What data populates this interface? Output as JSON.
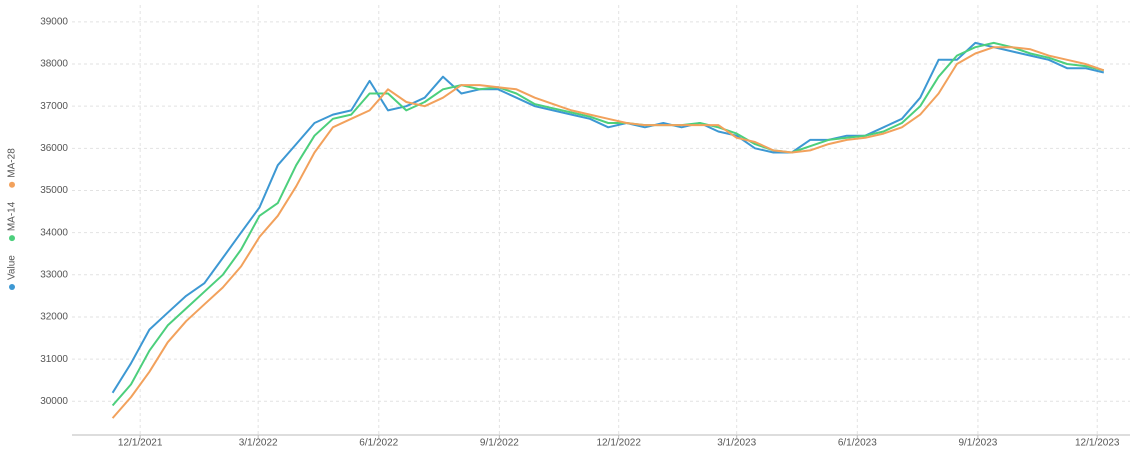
{
  "chart_data": {
    "type": "line",
    "x": [
      "2021-11-10",
      "2021-11-24",
      "2021-12-08",
      "2021-12-22",
      "2022-01-05",
      "2022-01-19",
      "2022-02-02",
      "2022-02-16",
      "2022-03-02",
      "2022-03-16",
      "2022-03-30",
      "2022-04-13",
      "2022-04-27",
      "2022-05-11",
      "2022-05-25",
      "2022-06-08",
      "2022-06-22",
      "2022-07-06",
      "2022-07-20",
      "2022-08-03",
      "2022-08-17",
      "2022-08-31",
      "2022-09-14",
      "2022-09-28",
      "2022-10-12",
      "2022-10-26",
      "2022-11-09",
      "2022-11-23",
      "2022-12-07",
      "2022-12-21",
      "2023-01-04",
      "2023-01-18",
      "2023-02-01",
      "2023-02-15",
      "2023-03-01",
      "2023-03-15",
      "2023-03-29",
      "2023-04-12",
      "2023-04-26",
      "2023-05-10",
      "2023-05-24",
      "2023-06-07",
      "2023-06-21",
      "2023-07-05",
      "2023-07-19",
      "2023-08-02",
      "2023-08-16",
      "2023-08-30",
      "2023-09-13",
      "2023-09-27",
      "2023-10-11",
      "2023-10-25",
      "2023-11-08",
      "2023-11-22",
      "2023-12-06"
    ],
    "series": [
      {
        "name": "Value",
        "color": "#3d98d3",
        "values": [
          30200,
          30900,
          31700,
          32100,
          32500,
          32800,
          33400,
          34000,
          34600,
          35600,
          36100,
          36600,
          36800,
          36900,
          37600,
          36900,
          37000,
          37200,
          37700,
          37300,
          37400,
          37400,
          37200,
          37000,
          36900,
          36800,
          36700,
          36500,
          36600,
          36500,
          36600,
          36500,
          36600,
          36400,
          36300,
          36000,
          35900,
          35900,
          36200,
          36200,
          36300,
          36300,
          36500,
          36700,
          37200,
          38100,
          38100,
          38500,
          38400,
          38300,
          38200,
          38100,
          37900,
          37900,
          37800
        ]
      },
      {
        "name": "MA-14",
        "color": "#4ccf7c",
        "values": [
          29900,
          30400,
          31200,
          31800,
          32200,
          32600,
          33000,
          33600,
          34400,
          34700,
          35600,
          36300,
          36700,
          36800,
          37300,
          37300,
          36900,
          37100,
          37400,
          37500,
          37400,
          37450,
          37300,
          37050,
          36950,
          36850,
          36750,
          36600,
          36600,
          36550,
          36550,
          36550,
          36600,
          36500,
          36350,
          36100,
          35950,
          35900,
          36050,
          36200,
          36250,
          36300,
          36400,
          36600,
          37000,
          37700,
          38200,
          38400,
          38500,
          38400,
          38250,
          38150,
          38000,
          37950,
          37850
        ]
      },
      {
        "name": "MA-28",
        "color": "#f2a15c",
        "values": [
          29600,
          30100,
          30700,
          31400,
          31900,
          32300,
          32700,
          33200,
          33900,
          34400,
          35100,
          35900,
          36500,
          36700,
          36900,
          37400,
          37100,
          37000,
          37200,
          37500,
          37500,
          37450,
          37400,
          37200,
          37050,
          36900,
          36800,
          36700,
          36600,
          36550,
          36550,
          36550,
          36550,
          36550,
          36250,
          36150,
          35950,
          35900,
          35950,
          36100,
          36200,
          36250,
          36350,
          36500,
          36800,
          37300,
          38000,
          38250,
          38400,
          38400,
          38350,
          38200,
          38100,
          38000,
          37850
        ]
      }
    ],
    "xlim": [
      "2021-10-10",
      "2023-12-26"
    ],
    "xticks": [
      {
        "value": "2021-12-01",
        "label": "12/1/2021"
      },
      {
        "value": "2022-03-01",
        "label": "3/1/2022"
      },
      {
        "value": "2022-06-01",
        "label": "6/1/2022"
      },
      {
        "value": "2022-09-01",
        "label": "9/1/2022"
      },
      {
        "value": "2022-12-01",
        "label": "12/1/2022"
      },
      {
        "value": "2023-03-01",
        "label": "3/1/2023"
      },
      {
        "value": "2023-06-01",
        "label": "6/1/2023"
      },
      {
        "value": "2023-09-01",
        "label": "9/1/2023"
      },
      {
        "value": "2023-12-01",
        "label": "12/1/2023"
      }
    ],
    "ylim": [
      29200,
      39400
    ],
    "yticks": [
      30000,
      31000,
      32000,
      33000,
      34000,
      35000,
      36000,
      37000,
      38000,
      39000
    ],
    "grid": true,
    "legend": "left"
  }
}
